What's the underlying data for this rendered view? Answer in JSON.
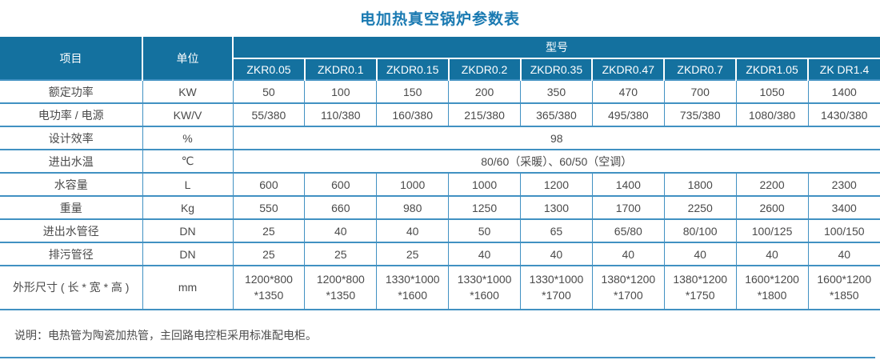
{
  "title": "电加热真空锅炉参数表",
  "colors": {
    "header_bg": "#14719f",
    "title_blue": "#1a7ab2",
    "grid_blue": "#4191c2",
    "body_text": "#4a4a4a"
  },
  "table": {
    "header": {
      "item": "项目",
      "unit": "单位",
      "model_group": "型号",
      "models": [
        "ZKR0.05",
        "ZKDR0.1",
        "ZKDR0.15",
        "ZKDR0.2",
        "ZKDR0.35",
        "ZKDR0.47",
        "ZKDR0.7",
        "ZKDR1.05",
        "ZK DR1.4"
      ]
    },
    "rows": [
      {
        "label": "额定功率",
        "unit": "KW",
        "values": [
          "50",
          "100",
          "150",
          "200",
          "350",
          "470",
          "700",
          "1050",
          "1400"
        ]
      },
      {
        "label": "电功率 / 电源",
        "unit": "KW/V",
        "values": [
          "55/380",
          "110/380",
          "160/380",
          "215/380",
          "365/380",
          "495/380",
          "735/380",
          "1080/380",
          "1430/380"
        ]
      },
      {
        "label": "设计效率",
        "unit": "%",
        "merged": "98"
      },
      {
        "label": "进出水温",
        "unit": "℃",
        "merged": "80/60（采暖）、60/50（空调）"
      },
      {
        "label": "水容量",
        "unit": "L",
        "values": [
          "600",
          "600",
          "1000",
          "1000",
          "1200",
          "1400",
          "1800",
          "2200",
          "2300"
        ]
      },
      {
        "label": "重量",
        "unit": "Kg",
        "values": [
          "550",
          "660",
          "980",
          "1250",
          "1300",
          "1700",
          "2250",
          "2600",
          "3400"
        ]
      },
      {
        "label": "进出水管径",
        "unit": "DN",
        "values": [
          "25",
          "40",
          "40",
          "50",
          "65",
          "65/80",
          "80/100",
          "100/125",
          "100/150"
        ]
      },
      {
        "label": "排污管径",
        "unit": "DN",
        "values": [
          "25",
          "25",
          "25",
          "40",
          "40",
          "40",
          "40",
          "40",
          "40"
        ]
      },
      {
        "label": "外形尺寸 ( 长 * 宽 * 高 )",
        "unit": "mm",
        "values": [
          "1200*800\n*1350",
          "1200*800\n*1350",
          "1330*1000\n*1600",
          "1330*1000\n*1600",
          "1330*1000\n*1700",
          "1380*1200\n*1700",
          "1380*1200\n*1750",
          "1600*1200\n*1800",
          "1600*1200\n*1850"
        ]
      }
    ],
    "note": "说明：电热管为陶瓷加热管，主回路电控柜采用标准配电柜。"
  }
}
